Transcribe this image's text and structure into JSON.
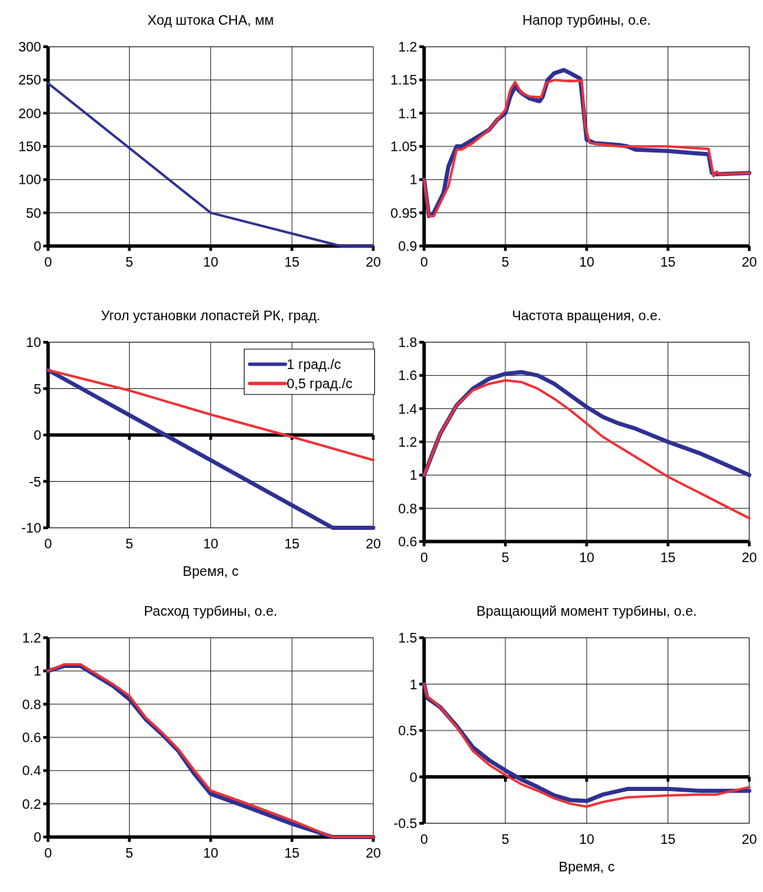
{
  "chart_data": [
    {
      "type": "line",
      "title": "Ход штока СНА, мм",
      "xlim": [
        0,
        20
      ],
      "xticks": [
        0,
        5,
        10,
        15,
        20
      ],
      "ylim": [
        0,
        300
      ],
      "yticks": [
        0,
        50,
        100,
        150,
        200,
        250,
        300
      ],
      "grid": true,
      "series": [
        {
          "color": "#2e3192",
          "x": [
            0,
            10,
            18,
            20
          ],
          "values": [
            245,
            50,
            0,
            0
          ]
        }
      ]
    },
    {
      "type": "line",
      "title": "Напор турбины, о.е.",
      "xlim": [
        0,
        20
      ],
      "xticks": [
        0,
        5,
        10,
        15,
        20
      ],
      "ylim": [
        0.9,
        1.2
      ],
      "yticks": [
        0.9,
        0.95,
        1,
        1.05,
        1.1,
        1.15,
        1.2
      ],
      "grid": true,
      "series": [
        {
          "color": "#2e3192",
          "x": [
            0,
            0.3,
            0.6,
            1.2,
            1.5,
            2,
            2.3,
            3,
            4,
            4.5,
            5,
            5.3,
            5.6,
            6,
            6.5,
            7.1,
            7.3,
            7.6,
            8,
            8.6,
            9,
            9.6,
            9.7,
            10,
            10.5,
            12,
            12.5,
            13,
            15,
            17.5,
            17.7,
            18,
            20
          ],
          "values": [
            1.0,
            0.945,
            0.95,
            0.98,
            1.02,
            1.05,
            1.05,
            1.06,
            1.075,
            1.09,
            1.1,
            1.125,
            1.14,
            1.13,
            1.122,
            1.118,
            1.125,
            1.15,
            1.16,
            1.165,
            1.16,
            1.152,
            1.13,
            1.06,
            1.055,
            1.052,
            1.05,
            1.045,
            1.043,
            1.038,
            1.01,
            1.008,
            1.01
          ]
        },
        {
          "color": "#ed3237",
          "x": [
            0,
            0.3,
            0.6,
            1,
            1.5,
            2,
            2.3,
            3,
            4,
            4.5,
            5,
            5.3,
            5.6,
            6,
            6.5,
            7.2,
            7.5,
            8,
            9,
            9.7,
            9.9,
            10.2,
            12,
            15,
            17.5,
            17.8,
            18,
            18.2,
            20
          ],
          "values": [
            1.0,
            0.945,
            0.945,
            0.965,
            0.99,
            1.045,
            1.045,
            1.055,
            1.075,
            1.09,
            1.105,
            1.135,
            1.147,
            1.13,
            1.125,
            1.124,
            1.145,
            1.15,
            1.148,
            1.149,
            1.08,
            1.055,
            1.05,
            1.05,
            1.046,
            1.005,
            1.012,
            1.008,
            1.01
          ]
        }
      ]
    },
    {
      "type": "line",
      "title": "Угол установки лопастей РК, град.",
      "xlabel": "Время, с",
      "xlim": [
        0,
        20
      ],
      "xticks": [
        0,
        5,
        10,
        15,
        20
      ],
      "ylim": [
        -10,
        10
      ],
      "yticks": [
        -10,
        -5,
        0,
        5,
        10
      ],
      "grid": true,
      "legend": "top right",
      "series": [
        {
          "name": "1 град./с",
          "color": "#2e3192",
          "x": [
            0,
            17.5,
            20
          ],
          "values": [
            7,
            -10,
            -10
          ]
        },
        {
          "name": "0,5 град./с",
          "color": "#ed3237",
          "x": [
            0,
            5,
            10,
            15,
            20
          ],
          "values": [
            7,
            4.8,
            2.2,
            -0.2,
            -2.7
          ]
        }
      ]
    },
    {
      "type": "line",
      "title": "Частота вращения, о.е.",
      "xlim": [
        0,
        20
      ],
      "xticks": [
        0,
        5,
        10,
        15,
        20
      ],
      "ylim": [
        0.6,
        1.8
      ],
      "yticks": [
        0.6,
        0.8,
        1,
        1.2,
        1.4,
        1.6,
        1.8
      ],
      "grid": true,
      "series": [
        {
          "color": "#2e3192",
          "x": [
            0,
            1,
            2,
            3,
            4,
            5,
            6,
            7,
            8,
            9,
            10,
            11,
            12,
            13,
            15,
            17,
            20
          ],
          "values": [
            1,
            1.25,
            1.42,
            1.52,
            1.58,
            1.61,
            1.62,
            1.6,
            1.55,
            1.48,
            1.41,
            1.35,
            1.31,
            1.28,
            1.2,
            1.13,
            1.0
          ]
        },
        {
          "color": "#ed3237",
          "x": [
            0,
            1,
            2,
            3,
            4,
            5,
            6,
            7,
            8,
            9,
            10,
            11,
            12,
            13,
            15,
            17,
            20
          ],
          "values": [
            1,
            1.25,
            1.42,
            1.51,
            1.55,
            1.57,
            1.56,
            1.52,
            1.46,
            1.39,
            1.31,
            1.23,
            1.17,
            1.11,
            0.99,
            0.89,
            0.74
          ]
        }
      ]
    },
    {
      "type": "line",
      "title": "Расход турбины, о.е.",
      "xlim": [
        0,
        20
      ],
      "xticks": [
        0,
        5,
        10,
        15,
        20
      ],
      "ylim": [
        0,
        1.2
      ],
      "yticks": [
        0,
        0.2,
        0.4,
        0.6,
        0.8,
        1,
        1.2
      ],
      "grid": true,
      "series": [
        {
          "color": "#2e3192",
          "x": [
            0,
            1,
            2,
            3,
            4,
            5,
            6,
            7,
            8,
            9,
            10,
            12,
            15,
            17.5,
            20
          ],
          "values": [
            1,
            1.03,
            1.03,
            0.97,
            0.91,
            0.83,
            0.71,
            0.62,
            0.52,
            0.38,
            0.26,
            0.19,
            0.08,
            0,
            0
          ]
        },
        {
          "color": "#ed3237",
          "x": [
            0,
            1,
            2,
            3,
            4,
            5,
            6,
            7,
            8,
            9,
            10,
            12,
            15,
            17.5,
            20
          ],
          "values": [
            1,
            1.04,
            1.04,
            0.98,
            0.92,
            0.85,
            0.72,
            0.63,
            0.53,
            0.4,
            0.28,
            0.21,
            0.1,
            0,
            0
          ]
        }
      ]
    },
    {
      "type": "line",
      "title": "Вращающий момент турбины, о.е.",
      "xlabel": "Время, с",
      "xlim": [
        0,
        20
      ],
      "xticks": [
        0,
        5,
        10,
        15,
        20
      ],
      "ylim": [
        -0.5,
        1.5
      ],
      "yticks": [
        -0.5,
        0,
        0.5,
        1,
        1.5
      ],
      "grid": true,
      "series": [
        {
          "color": "#2e3192",
          "x": [
            0,
            0.2,
            1,
            2,
            3,
            4,
            5,
            6,
            7,
            8,
            9,
            10,
            11,
            12.5,
            15,
            17,
            20
          ],
          "values": [
            1,
            0.85,
            0.75,
            0.55,
            0.32,
            0.18,
            0.07,
            -0.03,
            -0.11,
            -0.2,
            -0.25,
            -0.26,
            -0.19,
            -0.13,
            -0.13,
            -0.15,
            -0.15
          ]
        },
        {
          "color": "#ed3237",
          "x": [
            0,
            0.2,
            1,
            2,
            3,
            4,
            5,
            6,
            7,
            8,
            9,
            10,
            11,
            12.5,
            15,
            17,
            18,
            20
          ],
          "values": [
            1,
            0.87,
            0.75,
            0.54,
            0.28,
            0.13,
            0.02,
            -0.08,
            -0.15,
            -0.23,
            -0.29,
            -0.32,
            -0.27,
            -0.22,
            -0.2,
            -0.19,
            -0.19,
            -0.11
          ]
        }
      ]
    }
  ]
}
